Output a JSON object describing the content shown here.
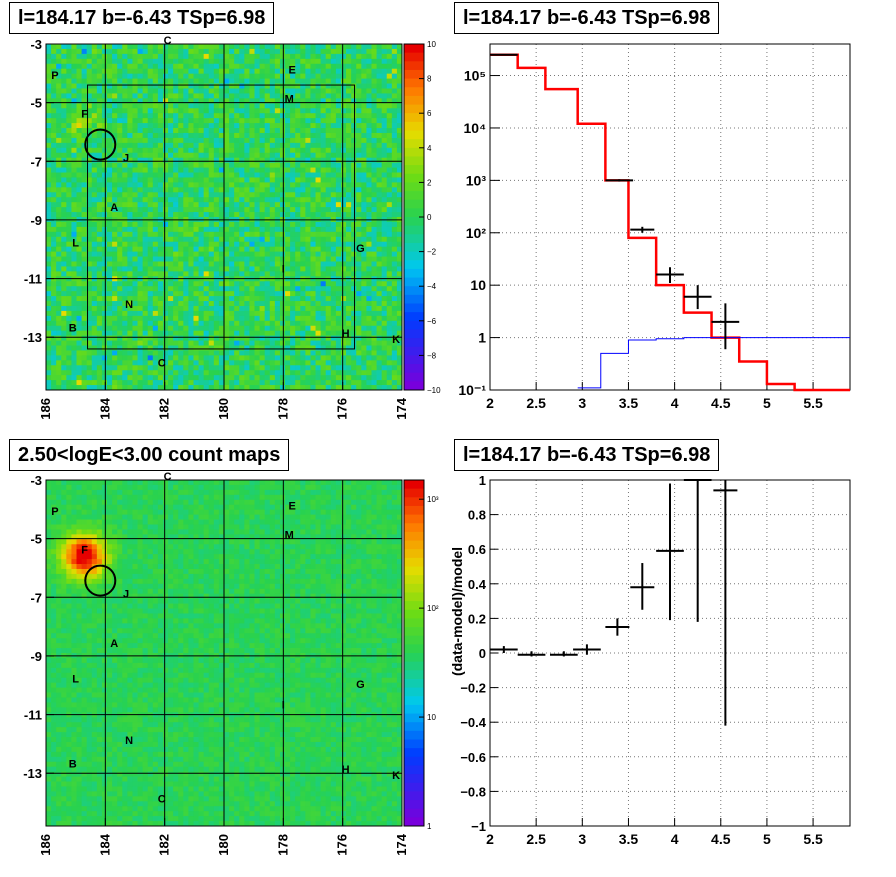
{
  "titles": {
    "top_left": "l=184.17 b=-6.43 TSp=6.98",
    "top_right": "l=184.17 b=-6.43 TSp=6.98",
    "bottom_left": "2.50<logE<3.00 count maps",
    "bottom_right": "l=184.17 b=-6.43 TSp=6.98"
  },
  "colors": {
    "model_line": "#ff0000",
    "blue_line": "#0000ff",
    "data_points": "#000000"
  },
  "chart_data": [
    {
      "id": "residual-map",
      "type": "heatmap",
      "title": "l=184.17 b=-6.43 TSp=6.98",
      "x_ticks": [
        "186",
        "184",
        "182",
        "180",
        "178",
        "176",
        "174"
      ],
      "y_ticks": [
        "-3",
        "-5",
        "-7",
        "-9",
        "-11",
        "-13"
      ],
      "xlim": [
        186,
        174
      ],
      "ylim": [
        -14.8,
        -3
      ],
      "colorbar": {
        "ticks": [
          "10",
          "8",
          "6",
          "4",
          "2",
          "0",
          "−2",
          "−4",
          "−6",
          "−8",
          "−10"
        ],
        "range": [
          -10,
          10
        ]
      },
      "source_labels": [
        {
          "label": "C",
          "l": 181.9,
          "b": -3.0
        },
        {
          "label": "E",
          "l": 177.7,
          "b": -4.0
        },
        {
          "label": "P",
          "l": 185.7,
          "b": -4.2
        },
        {
          "label": "M",
          "l": 177.8,
          "b": -5.0
        },
        {
          "label": "F",
          "l": 184.7,
          "b": -5.5
        },
        {
          "label": "J",
          "l": 183.3,
          "b": -7.0
        },
        {
          "label": "A",
          "l": 183.7,
          "b": -8.7
        },
        {
          "label": "L",
          "l": 185.0,
          "b": -9.9
        },
        {
          "label": "G",
          "l": 175.4,
          "b": -10.1
        },
        {
          "label": "I",
          "l": 178.0,
          "b": -10.8
        },
        {
          "label": "N",
          "l": 183.2,
          "b": -12.0
        },
        {
          "label": "B",
          "l": 185.1,
          "b": -12.8
        },
        {
          "label": "H",
          "l": 175.9,
          "b": -13.0
        },
        {
          "label": "K",
          "l": 174.2,
          "b": -13.2
        },
        {
          "label": "C",
          "l": 182.1,
          "b": -14.0
        }
      ]
    },
    {
      "id": "spectrum",
      "type": "line",
      "title": "l=184.17 b=-6.43 TSp=6.98",
      "log_y": true,
      "xlim": [
        2,
        5.9
      ],
      "ylim": [
        0.1,
        400000
      ],
      "x_ticks": [
        "2",
        "2.5",
        "3",
        "3.5",
        "4",
        "4.5",
        "5",
        "5.5"
      ],
      "y_ticks": [
        "10⁻¹",
        "1",
        "10",
        "10²",
        "10³",
        "10⁴",
        "10⁵"
      ],
      "series": [
        {
          "style": "red-step",
          "edges": [
            2.0,
            2.3,
            2.6,
            2.95,
            3.25,
            3.5,
            3.8,
            4.1,
            4.4,
            4.7,
            5.0,
            5.3,
            5.6,
            5.9
          ],
          "values": [
            250000,
            140000,
            55000,
            12000,
            1000,
            80,
            10,
            3,
            1,
            0.35,
            0.13,
            0.1,
            0.1
          ]
        },
        {
          "style": "blue-step",
          "edges": [
            2.95,
            3.2,
            3.5,
            3.8,
            4.1,
            4.4,
            5.9
          ],
          "values": [
            0.11,
            0.5,
            0.9,
            0.95,
            1.0,
            1.0
          ]
        },
        {
          "style": "data-points",
          "points": [
            {
              "x": 2.15,
              "y": 250000,
              "xerr": 0.15,
              "ylo": 245000,
              "yhi": 255000
            },
            {
              "x": 3.4,
              "y": 1000,
              "xerr": 0.15,
              "ylo": 950,
              "yhi": 1050
            },
            {
              "x": 3.65,
              "y": 115,
              "xerr": 0.13,
              "ylo": 100,
              "yhi": 130
            },
            {
              "x": 3.95,
              "y": 16,
              "xerr": 0.15,
              "ylo": 11,
              "yhi": 22
            },
            {
              "x": 4.25,
              "y": 6,
              "xerr": 0.15,
              "ylo": 3.5,
              "yhi": 10
            },
            {
              "x": 4.55,
              "y": 2,
              "xerr": 0.15,
              "ylo": 0.6,
              "yhi": 4.5
            }
          ]
        }
      ]
    },
    {
      "id": "count-map",
      "type": "heatmap",
      "title": "2.50<logE<3.00 count maps",
      "x_ticks": [
        "186",
        "184",
        "182",
        "180",
        "178",
        "176",
        "174"
      ],
      "y_ticks": [
        "-3",
        "-5",
        "-7",
        "-9",
        "-11",
        "-13"
      ],
      "xlim": [
        186,
        174
      ],
      "ylim": [
        -14.8,
        -3
      ],
      "colorbar": {
        "ticks": [
          "10³",
          "10²",
          "10",
          "1"
        ],
        "log": true,
        "range": [
          1,
          1500
        ]
      }
    },
    {
      "id": "residual-plot",
      "type": "scatter",
      "title": "l=184.17 b=-6.43 TSp=6.98",
      "ylabel": "(data-model)/model",
      "xlim": [
        2,
        5.9
      ],
      "ylim": [
        -1,
        1
      ],
      "x_ticks": [
        "2",
        "2.5",
        "3",
        "3.5",
        "4",
        "4.5",
        "5",
        "5.5"
      ],
      "y_ticks": [
        "1",
        "0.8",
        "0.6",
        "0.4",
        "0.2",
        "0",
        "−0.2",
        "−0.4",
        "−0.6",
        "−0.8",
        "−1"
      ],
      "points": [
        {
          "x": 2.15,
          "y": 0.02,
          "xerr": 0.15,
          "ylo": 0.0,
          "yhi": 0.04
        },
        {
          "x": 2.45,
          "y": -0.01,
          "xerr": 0.15,
          "ylo": -0.02,
          "yhi": 0.01
        },
        {
          "x": 2.8,
          "y": -0.01,
          "xerr": 0.15,
          "ylo": -0.02,
          "yhi": 0.01
        },
        {
          "x": 3.05,
          "y": 0.02,
          "xerr": 0.15,
          "ylo": -0.01,
          "yhi": 0.05
        },
        {
          "x": 3.38,
          "y": 0.15,
          "xerr": 0.13,
          "ylo": 0.1,
          "yhi": 0.2
        },
        {
          "x": 3.65,
          "y": 0.38,
          "xerr": 0.13,
          "ylo": 0.25,
          "yhi": 0.52
        },
        {
          "x": 3.95,
          "y": 0.59,
          "xerr": 0.15,
          "ylo": 0.19,
          "yhi": 0.98
        },
        {
          "x": 4.25,
          "y": 1.0,
          "xerr": 0.15,
          "ylo": 0.18,
          "yhi": 1.0
        },
        {
          "x": 4.55,
          "y": 0.94,
          "xerr": 0.13,
          "ylo": -0.42,
          "yhi": 1.0
        }
      ]
    }
  ]
}
